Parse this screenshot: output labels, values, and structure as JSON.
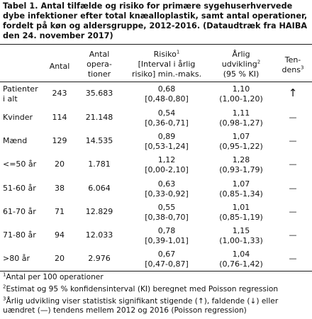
{
  "title": "Tabel 1. Antal tilfælde og risiko for primære sygehuserhvervede dybe infektioner efter total knæalloplastik, samt antal operationer, fordelt på køn og aldersgruppe, 2012-2016. (Dataudtræk fra HAIBA den 24. november 2017)",
  "headers": {
    "antal": "Antal",
    "ops_l1": "Antal",
    "ops_l2": "opera-",
    "ops_l3": "tioner",
    "risk_l1": "Risiko",
    "risk_sup": "1",
    "risk_l2": "[Interval i årlig",
    "risk_l3": "risiko] min.-maks.",
    "dev_l1": "Årlig",
    "dev_l2": "udvikling",
    "dev_sup": "2",
    "dev_l3": "(95 % KI)",
    "trend_l1": "Ten-",
    "trend_l2": "dens",
    "trend_sup": "3"
  },
  "rows": [
    {
      "label1": "Patienter",
      "label2": "i alt",
      "n": "243",
      "ops": "35.683",
      "risk": "0,68",
      "risk_int": "[0,48-0,80]",
      "dev": "1,10",
      "dev_ci": "(1,00-1,20)",
      "trend": "↑"
    },
    {
      "label1": "Kvinder",
      "label2": "",
      "n": "114",
      "ops": "21.148",
      "risk": "0,54",
      "risk_int": "[0,36-0,71]",
      "dev": "1,11",
      "dev_ci": "(0,98-1,27)",
      "trend": "—"
    },
    {
      "label1": "Mænd",
      "label2": "",
      "n": "129",
      "ops": "14.535",
      "risk": "0,89",
      "risk_int": "[0,53-1,24]",
      "dev": "1,07",
      "dev_ci": "(0,95-1,22)",
      "trend": "—"
    },
    {
      "label1": "<=50 år",
      "label2": "",
      "n": "20",
      "ops": "1.781",
      "risk": "1,12",
      "risk_int": "[0,00-2,10]",
      "dev": "1,28",
      "dev_ci": "(0,93-1,79)",
      "trend": "—"
    },
    {
      "label1": "51-60 år",
      "label2": "",
      "n": "38",
      "ops": "6.064",
      "risk": "0,63",
      "risk_int": "[0,33-0,92]",
      "dev": "1,07",
      "dev_ci": "(0,85-1,34)",
      "trend": "—"
    },
    {
      "label1": "61-70 år",
      "label2": "",
      "n": "71",
      "ops": "12.829",
      "risk": "0,55",
      "risk_int": "[0,38-0,70]",
      "dev": "1,01",
      "dev_ci": "(0,85-1,19)",
      "trend": "—"
    },
    {
      "label1": "71-80 år",
      "label2": "",
      "n": "94",
      "ops": "12.033",
      "risk": "0,78",
      "risk_int": "[0,39-1,01]",
      "dev": "1,15",
      "dev_ci": "(1,00-1,33)",
      "trend": "—"
    },
    {
      "label1": ">80 år",
      "label2": "",
      "n": "20",
      "ops": "2.976",
      "risk": "0,67",
      "risk_int": "[0,47-0,87]",
      "dev": "1,04",
      "dev_ci": "(0,76-1,42)",
      "trend": "—"
    }
  ],
  "footnotes": {
    "fn1_sup": "1",
    "fn1": "Antal per 100 operationer",
    "fn2_sup": "2",
    "fn2": "Estimat og 95 % konfidensinterval (KI) beregnet med Poisson regression",
    "fn3_sup": "3",
    "fn3": "Årlig udvikling viser statistisk signifikant stigende (↑), faldende (↓) eller uændret (—) tendens mellem 2012 og 2016 (Poisson regression)"
  }
}
